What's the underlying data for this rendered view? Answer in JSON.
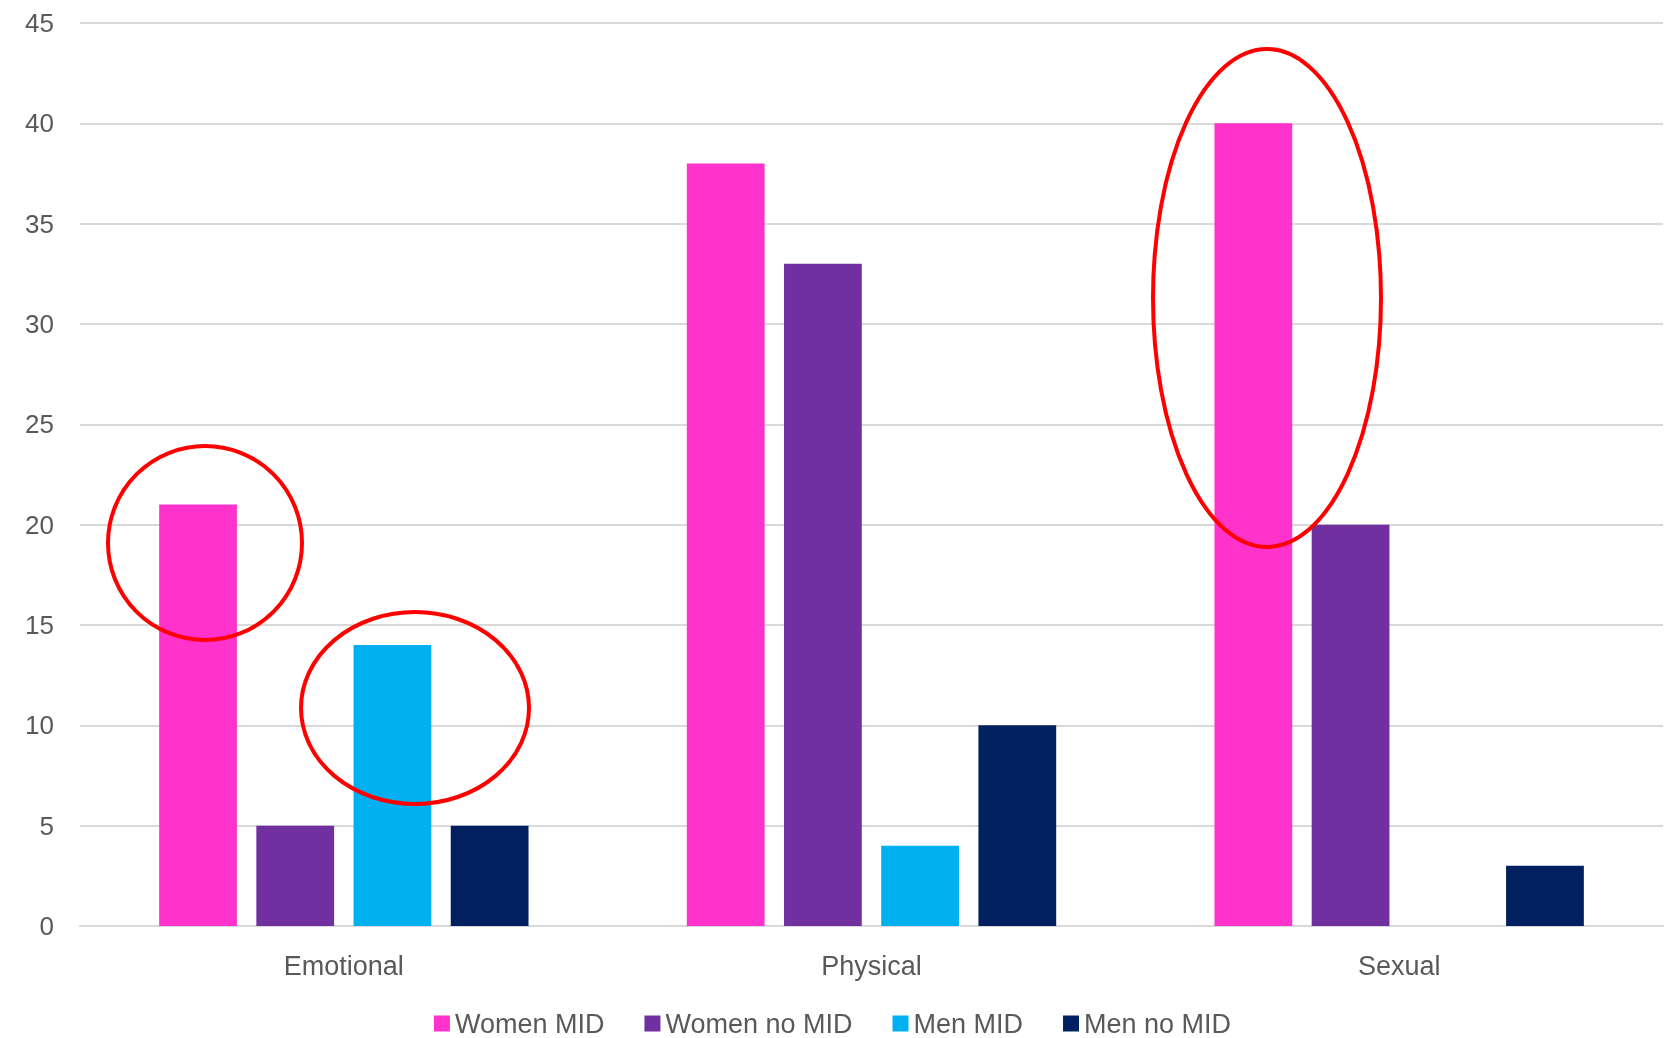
{
  "chart_data": {
    "type": "bar",
    "categories": [
      "Emotional",
      "Physical",
      "Sexual"
    ],
    "series": [
      {
        "name": "Women MID",
        "color": "#ff33cc",
        "values": [
          21,
          38,
          40
        ]
      },
      {
        "name": "Women no MID",
        "color": "#7030a0",
        "values": [
          5,
          33,
          20
        ]
      },
      {
        "name": "Men MID",
        "color": "#00b0f0",
        "values": [
          14,
          4,
          null
        ]
      },
      {
        "name": "Men no MID",
        "color": "#002060",
        "values": [
          5,
          10,
          3
        ]
      }
    ],
    "ylim": [
      0,
      45
    ],
    "yticks": [
      0,
      5,
      10,
      15,
      20,
      25,
      30,
      35,
      40,
      45
    ],
    "grid": "y",
    "legend": "bottom"
  }
}
